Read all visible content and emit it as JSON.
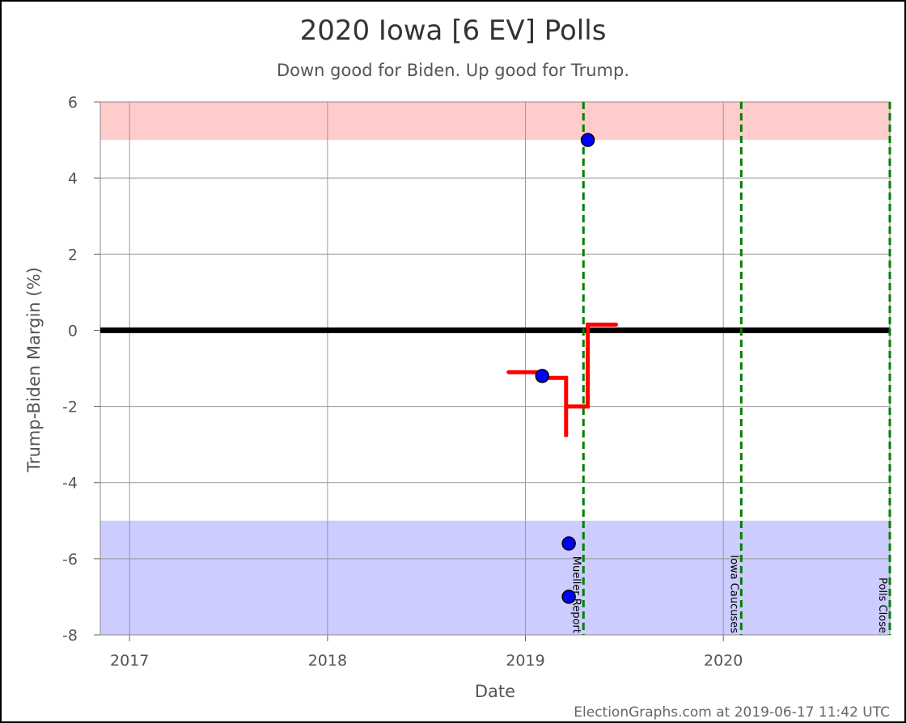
{
  "title": "2020 Iowa [6 EV] Polls",
  "subtitle": "Down good for Biden. Up good for Trump.",
  "footer": "ElectionGraphs.com at 2019-06-17 11:42 UTC",
  "colors": {
    "trump_band": "#ffcccc",
    "biden_band": "#ccccff",
    "average_line": "#ff0000",
    "poll_point": "#0000ff",
    "event_line": "#008000",
    "zero_line": "#000000",
    "grid": "#999999"
  },
  "chart_data": {
    "type": "scatter",
    "xlabel": "Date",
    "ylabel": "Trump-Biden Margin (%)",
    "xlim": [
      "2016-11-08",
      "2020-11-03"
    ],
    "ylim": [
      -8,
      6
    ],
    "x_ticks": [
      {
        "date": "2017-01-01",
        "label": "2017"
      },
      {
        "date": "2018-01-01",
        "label": "2018"
      },
      {
        "date": "2019-01-01",
        "label": "2019"
      },
      {
        "date": "2020-01-01",
        "label": "2020"
      }
    ],
    "y_ticks": [
      6,
      4,
      2,
      0,
      -2,
      -4,
      -6,
      -8
    ],
    "bands": [
      {
        "name": "trump",
        "from": 5,
        "to": 6
      },
      {
        "name": "biden",
        "from": -8,
        "to": -5
      }
    ],
    "polls": [
      {
        "date": "2019-02-01",
        "margin": -1.2
      },
      {
        "date": "2019-03-22",
        "margin": -5.6
      },
      {
        "date": "2019-03-22",
        "margin": -7.0
      },
      {
        "date": "2019-04-26",
        "margin": 5.0
      }
    ],
    "average": [
      {
        "date": "2018-12-01",
        "margin": -1.1
      },
      {
        "date": "2019-02-01",
        "margin": -1.1
      },
      {
        "date": "2019-02-01",
        "margin": -1.25
      },
      {
        "date": "2019-03-17",
        "margin": -1.25
      },
      {
        "date": "2019-03-17",
        "margin": -2.8
      },
      {
        "date": "2019-03-17",
        "margin": -2.0
      },
      {
        "date": "2019-04-26",
        "margin": -2.0
      },
      {
        "date": "2019-04-26",
        "margin": 0.15
      },
      {
        "date": "2019-06-17",
        "margin": 0.15
      }
    ],
    "events": [
      {
        "date": "2019-04-18",
        "label": "Mueller Report"
      },
      {
        "date": "2020-02-03",
        "label": "Iowa Caucuses"
      },
      {
        "date": "2020-11-03",
        "label": "Polls Close"
      }
    ]
  }
}
